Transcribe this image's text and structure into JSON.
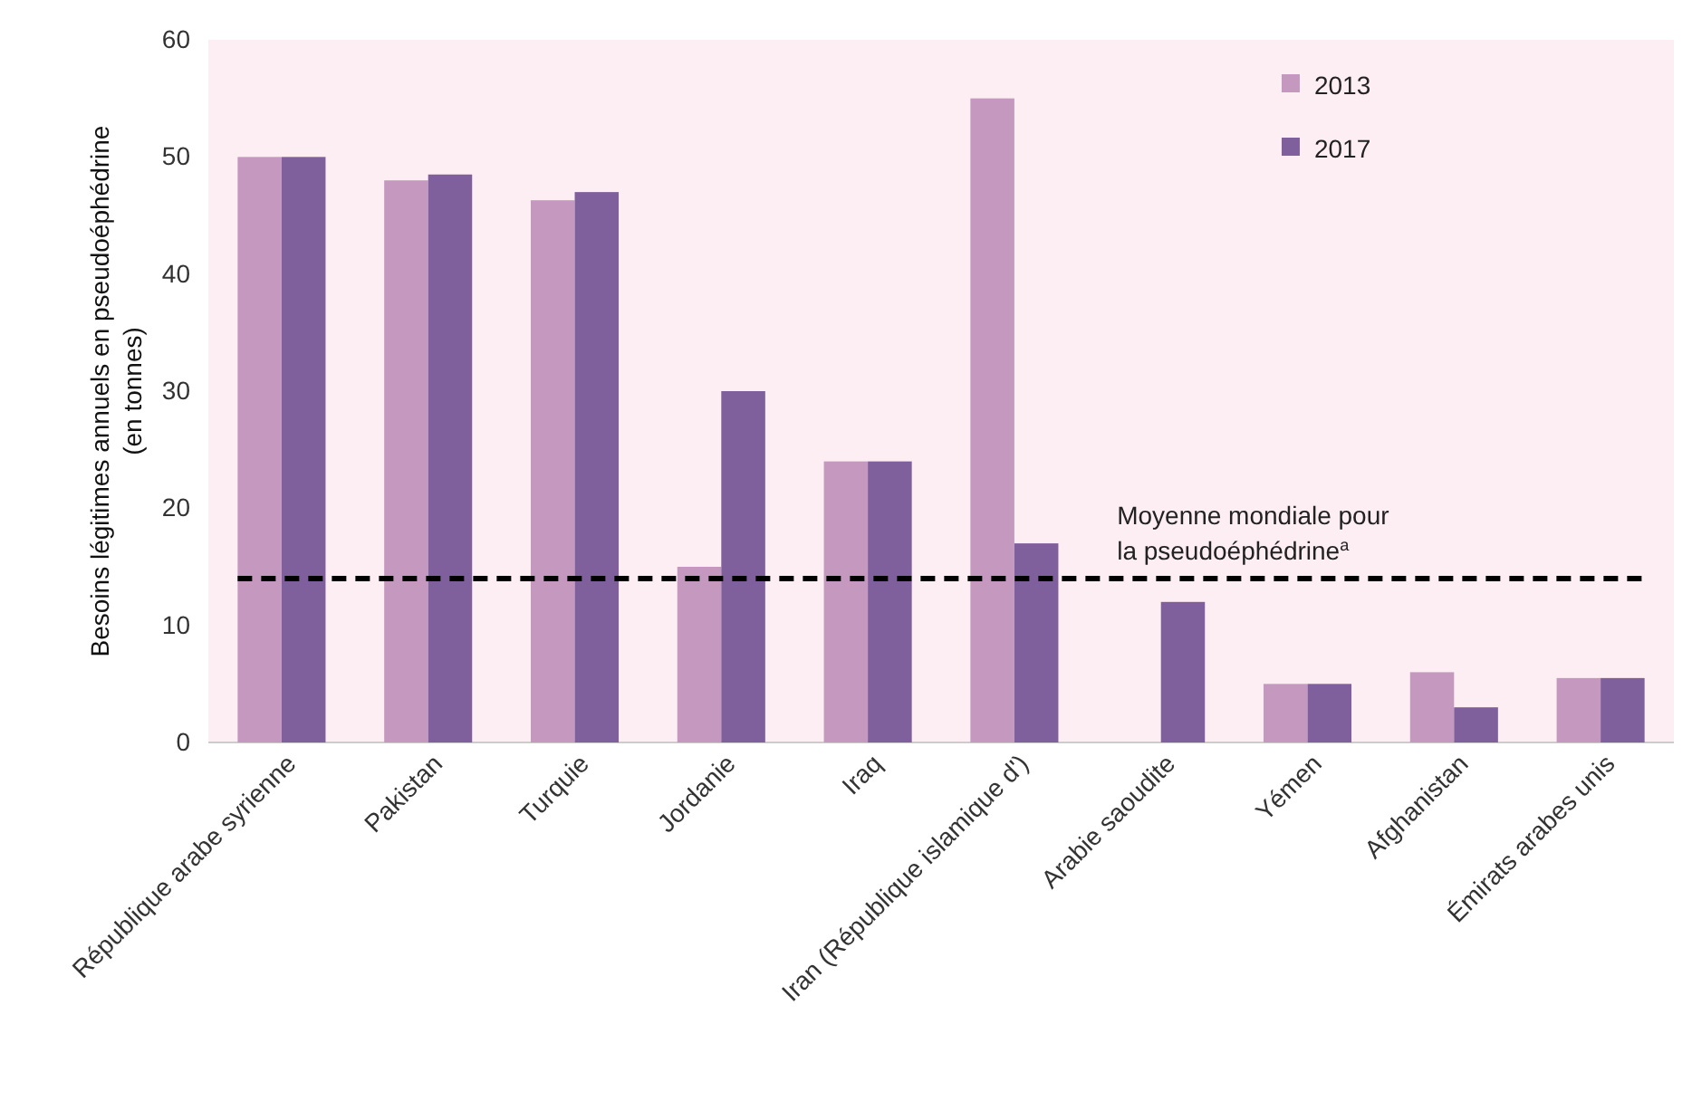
{
  "chart_data": {
    "type": "bar",
    "ylabel": "Besoins légitimes annuels en pseudoéphédrine (en tonnes)",
    "categories": [
      "République arabe syrienne",
      "Pakistan",
      "Turquie",
      "Jordanie",
      "Iraq",
      "Iran (République islamique d')",
      "Arabie saoudite",
      "Yémen",
      "Afghanistan",
      "Émirats arabes unis"
    ],
    "series": [
      {
        "name": "2013",
        "color": "#c599bf",
        "values": [
          50,
          48,
          46.3,
          15,
          24,
          55,
          null,
          5,
          6,
          5.5
        ]
      },
      {
        "name": "2017",
        "color": "#80609c",
        "values": [
          50,
          48.5,
          47,
          30,
          24,
          17,
          12,
          5,
          3,
          5.5
        ]
      }
    ],
    "ylim": [
      0,
      60
    ],
    "yticks": [
      0,
      10,
      20,
      30,
      40,
      50,
      60
    ],
    "grid": false,
    "legend": "top right",
    "ref_lines": [
      {
        "axis": "y",
        "value": 14,
        "label": "Moyenne mondiale pour la pseudoéphédrine$^{a}$",
        "color": "#000000",
        "line_style": "dashed"
      }
    ]
  }
}
